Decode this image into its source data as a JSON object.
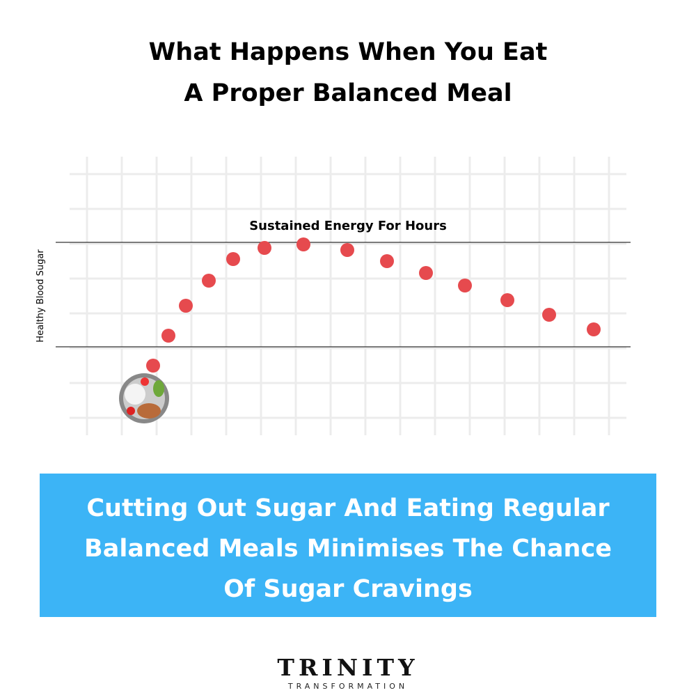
{
  "chart_data": {
    "type": "scatter",
    "title": [
      "What Happens When You Eat",
      "A Proper Balanced Meal"
    ],
    "y_label": "Healthy Blood Sugar",
    "annotation": "Sustained Energy For Hours",
    "x": [
      1.9,
      2.34,
      2.84,
      3.5,
      4.2,
      5.1,
      6.22,
      7.48,
      8.62,
      9.74,
      10.86,
      12.08,
      13.28,
      14.56
    ],
    "values": [
      1.5,
      2.36,
      3.22,
      3.94,
      4.56,
      4.88,
      4.98,
      4.82,
      4.5,
      4.16,
      3.8,
      3.38,
      2.96,
      2.54
    ],
    "color": "#e64a4e",
    "reference_lines": [
      5.04,
      2.04
    ],
    "xlim": [
      -0.5,
      15.5
    ],
    "ylim": [
      -0.5,
      7.5
    ],
    "xticks": [
      0,
      1,
      2,
      3,
      4,
      5,
      6,
      7,
      8,
      9,
      10,
      11,
      12,
      13,
      14,
      15
    ],
    "yticks": [
      0,
      1,
      2,
      3,
      4,
      5,
      6,
      7
    ],
    "grid": true
  },
  "caption": [
    "Cutting Out Sugar And Eating Regular",
    "Balanced Meals Minimises The Chance",
    "Of Sugar Cravings"
  ],
  "logo": {
    "name": "TRINITY",
    "tagline": "TRANSFORMATION"
  }
}
